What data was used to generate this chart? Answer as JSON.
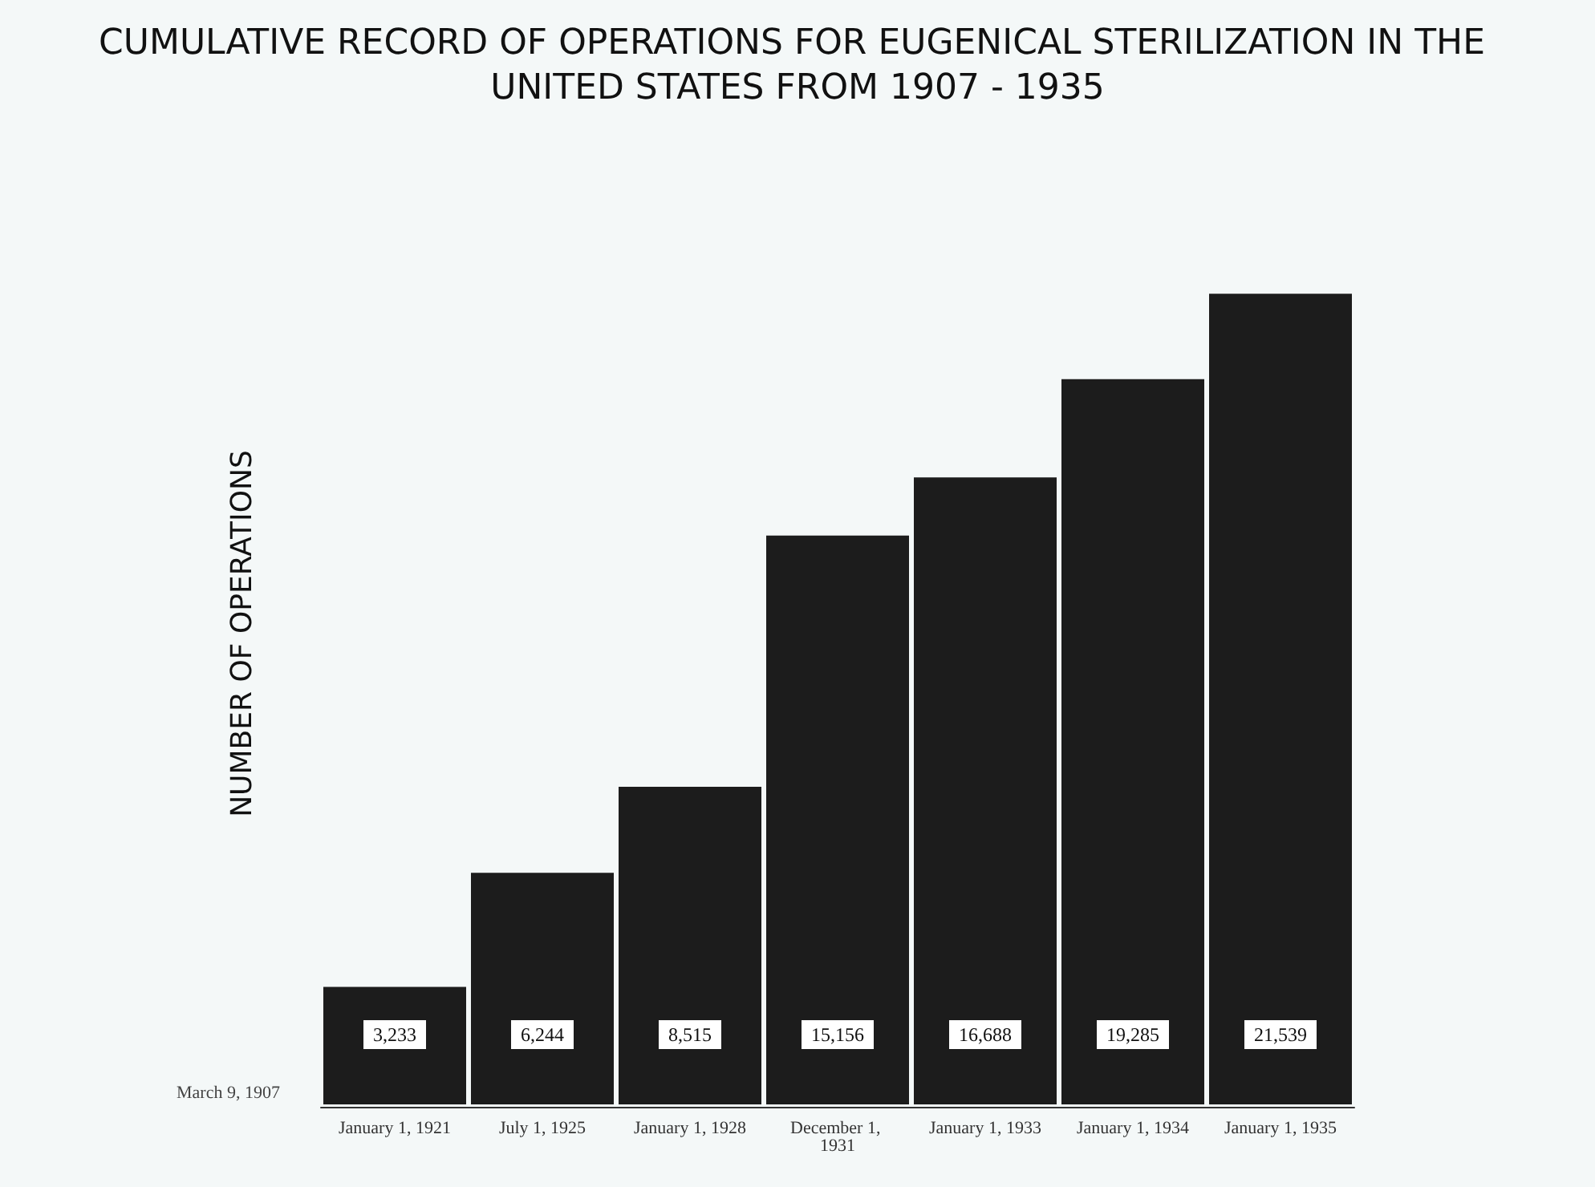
{
  "chart_data": {
    "type": "bar",
    "title": "CUMULATIVE RECORD OF OPERATIONS FOR EUGENICAL STERILIZATION IN THE UNITED STATES FROM 1907 - 1935",
    "ylabel": "NUMBER OF OPERATIONS",
    "categories": [
      "January 1, 1921",
      "July 1, 1925",
      "January 1, 1928",
      "December 1, 1931",
      "January 1, 1933",
      "January 1, 1934",
      "January 1, 1935"
    ],
    "values": [
      3233,
      6244,
      8515,
      15156,
      16688,
      19285,
      21539
    ],
    "value_labels": [
      "3,233",
      "6,244",
      "8,515",
      "15,156",
      "16,688",
      "19,285",
      "21,539"
    ],
    "color": "#1c1c1c",
    "annotations": [
      "March 9, 1907"
    ],
    "grid": false
  }
}
